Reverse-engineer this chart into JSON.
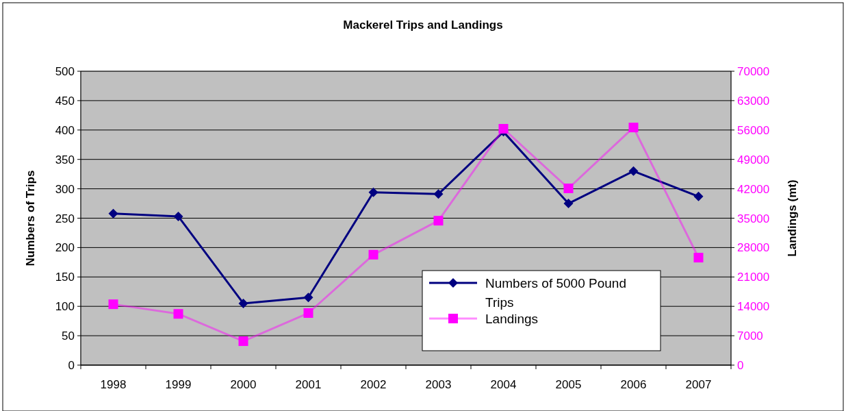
{
  "chart_data": {
    "type": "line",
    "title": "Mackerel Trips and Landings",
    "ylabel": "Numbers of Trips",
    "y2label": "Landings (mt)",
    "categories": [
      "1998",
      "1999",
      "2000",
      "2001",
      "2002",
      "2003",
      "2004",
      "2005",
      "2006",
      "2007"
    ],
    "series": [
      {
        "name": "Numbers of 5000 Pound Trips",
        "color": "#000080",
        "marker": "diamond",
        "values": [
          258,
          253,
          105,
          115,
          294,
          291,
          397,
          275,
          330,
          287
        ]
      },
      {
        "name": "Landings",
        "color": "#ff00ff",
        "marker": "square",
        "axis": "y2",
        "values": [
          14500,
          12200,
          5700,
          12400,
          26300,
          34400,
          56300,
          42100,
          56600,
          25600
        ]
      }
    ],
    "ylim": [
      0,
      500
    ],
    "yticks": [
      0,
      50,
      100,
      150,
      200,
      250,
      300,
      350,
      400,
      450,
      500
    ],
    "y2lim": [
      0,
      70000
    ],
    "y2ticks": [
      0,
      7000,
      14000,
      21000,
      28000,
      35000,
      42000,
      49000,
      56000,
      63000,
      70000
    ],
    "grid": "y",
    "legend": "bottom right"
  }
}
